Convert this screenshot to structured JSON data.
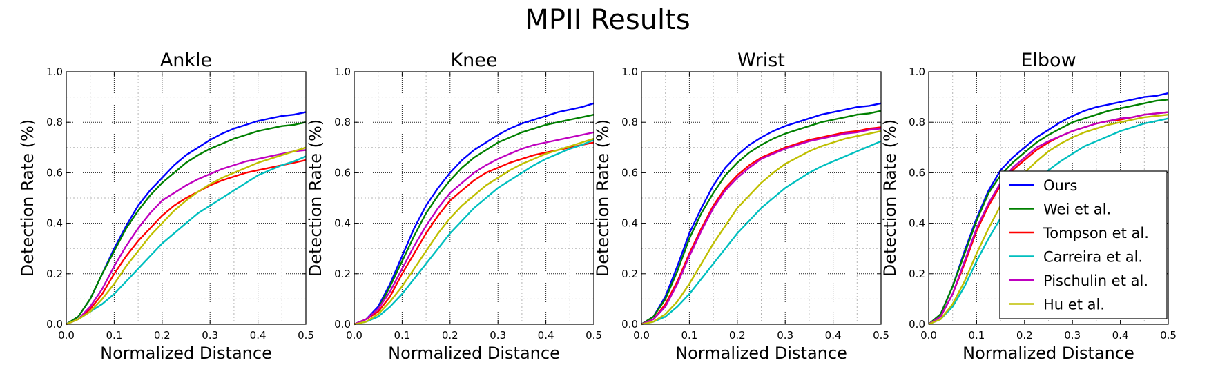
{
  "figure": {
    "title": "MPII Results"
  },
  "chart_data": [
    {
      "type": "line",
      "title": "Ankle",
      "xlabel": "Normalized Distance",
      "ylabel": "Detection Rate (%)",
      "xlim": [
        0,
        0.5
      ],
      "ylim": [
        0,
        1
      ],
      "xticks": [
        "0.0",
        "0.1",
        "0.2",
        "0.3",
        "0.4",
        "0.5"
      ],
      "yticks": [
        "0.0",
        "0.2",
        "0.4",
        "0.6",
        "0.8",
        "1.0"
      ],
      "grid": true,
      "x": [
        0,
        0.025,
        0.05,
        0.075,
        0.1,
        0.125,
        0.15,
        0.175,
        0.2,
        0.225,
        0.25,
        0.275,
        0.3,
        0.325,
        0.35,
        0.375,
        0.4,
        0.425,
        0.45,
        0.475,
        0.5
      ],
      "series": [
        {
          "name": "Ours",
          "color": "#0000ff",
          "values": [
            0.0,
            0.03,
            0.1,
            0.2,
            0.3,
            0.39,
            0.47,
            0.53,
            0.58,
            0.63,
            0.67,
            0.7,
            0.73,
            0.755,
            0.775,
            0.79,
            0.805,
            0.815,
            0.825,
            0.83,
            0.84
          ]
        },
        {
          "name": "Wei et al.",
          "color": "#008000",
          "values": [
            0.0,
            0.03,
            0.1,
            0.2,
            0.29,
            0.38,
            0.45,
            0.51,
            0.56,
            0.6,
            0.64,
            0.67,
            0.695,
            0.715,
            0.735,
            0.75,
            0.765,
            0.775,
            0.785,
            0.79,
            0.8
          ]
        },
        {
          "name": "Tompson et al.",
          "color": "#ff0000",
          "values": [
            0.0,
            0.02,
            0.06,
            0.12,
            0.2,
            0.27,
            0.33,
            0.38,
            0.43,
            0.47,
            0.5,
            0.525,
            0.55,
            0.57,
            0.585,
            0.6,
            0.61,
            0.62,
            0.63,
            0.64,
            0.65
          ]
        },
        {
          "name": "Carreira et al.",
          "color": "#00bfbf",
          "values": [
            0.0,
            0.02,
            0.05,
            0.08,
            0.12,
            0.17,
            0.22,
            0.27,
            0.32,
            0.36,
            0.4,
            0.44,
            0.47,
            0.5,
            0.53,
            0.56,
            0.59,
            0.61,
            0.63,
            0.645,
            0.665
          ]
        },
        {
          "name": "Pischulin et al.",
          "color": "#bf00bf",
          "values": [
            0.0,
            0.02,
            0.07,
            0.14,
            0.23,
            0.31,
            0.38,
            0.44,
            0.49,
            0.52,
            0.55,
            0.575,
            0.595,
            0.615,
            0.63,
            0.645,
            0.655,
            0.665,
            0.675,
            0.685,
            0.69
          ]
        },
        {
          "name": "Hu et al.",
          "color": "#bfbf00",
          "values": [
            0.0,
            0.02,
            0.05,
            0.1,
            0.16,
            0.23,
            0.29,
            0.35,
            0.4,
            0.45,
            0.49,
            0.525,
            0.555,
            0.58,
            0.6,
            0.62,
            0.64,
            0.655,
            0.67,
            0.685,
            0.7
          ]
        }
      ]
    },
    {
      "type": "line",
      "title": "Knee",
      "xlabel": "Normalized Distance",
      "ylabel": "Detection Rate (%)",
      "xlim": [
        0,
        0.5
      ],
      "ylim": [
        0,
        1
      ],
      "xticks": [
        "0.0",
        "0.1",
        "0.2",
        "0.3",
        "0.4",
        "0.5"
      ],
      "yticks": [
        "0.0",
        "0.2",
        "0.4",
        "0.6",
        "0.8",
        "1.0"
      ],
      "grid": true,
      "x": [
        0,
        0.025,
        0.05,
        0.075,
        0.1,
        0.125,
        0.15,
        0.175,
        0.2,
        0.225,
        0.25,
        0.275,
        0.3,
        0.325,
        0.35,
        0.375,
        0.4,
        0.425,
        0.45,
        0.475,
        0.5
      ],
      "series": [
        {
          "name": "Ours",
          "color": "#0000ff",
          "values": [
            0.0,
            0.02,
            0.07,
            0.16,
            0.27,
            0.38,
            0.47,
            0.54,
            0.6,
            0.65,
            0.69,
            0.72,
            0.75,
            0.775,
            0.795,
            0.81,
            0.825,
            0.84,
            0.85,
            0.86,
            0.875
          ]
        },
        {
          "name": "Wei et al.",
          "color": "#008000",
          "values": [
            0.0,
            0.02,
            0.06,
            0.15,
            0.25,
            0.35,
            0.44,
            0.51,
            0.57,
            0.62,
            0.66,
            0.69,
            0.72,
            0.74,
            0.76,
            0.775,
            0.79,
            0.8,
            0.81,
            0.82,
            0.83
          ]
        },
        {
          "name": "Tompson et al.",
          "color": "#ff0000",
          "values": [
            0.0,
            0.02,
            0.05,
            0.11,
            0.2,
            0.28,
            0.36,
            0.43,
            0.49,
            0.53,
            0.57,
            0.6,
            0.62,
            0.64,
            0.655,
            0.67,
            0.68,
            0.69,
            0.7,
            0.71,
            0.72
          ]
        },
        {
          "name": "Carreira et al.",
          "color": "#00bfbf",
          "values": [
            0.0,
            0.01,
            0.03,
            0.07,
            0.12,
            0.18,
            0.24,
            0.3,
            0.36,
            0.41,
            0.46,
            0.5,
            0.54,
            0.57,
            0.6,
            0.63,
            0.655,
            0.675,
            0.695,
            0.71,
            0.73
          ]
        },
        {
          "name": "Pischulin et al.",
          "color": "#bf00bf",
          "values": [
            0.0,
            0.02,
            0.06,
            0.13,
            0.22,
            0.31,
            0.39,
            0.46,
            0.52,
            0.56,
            0.6,
            0.63,
            0.655,
            0.675,
            0.695,
            0.71,
            0.72,
            0.73,
            0.74,
            0.75,
            0.76
          ]
        },
        {
          "name": "Hu et al.",
          "color": "#bfbf00",
          "values": [
            0.0,
            0.01,
            0.04,
            0.09,
            0.15,
            0.22,
            0.29,
            0.36,
            0.42,
            0.47,
            0.51,
            0.55,
            0.58,
            0.61,
            0.635,
            0.655,
            0.675,
            0.69,
            0.705,
            0.72,
            0.735
          ]
        }
      ]
    },
    {
      "type": "line",
      "title": "Wrist",
      "xlabel": "Normalized Distance",
      "ylabel": "Detection Rate (%)",
      "xlim": [
        0,
        0.5
      ],
      "ylim": [
        0,
        1
      ],
      "xticks": [
        "0.0",
        "0.1",
        "0.2",
        "0.3",
        "0.4",
        "0.5"
      ],
      "yticks": [
        "0.0",
        "0.2",
        "0.4",
        "0.6",
        "0.8",
        "1.0"
      ],
      "grid": true,
      "x": [
        0,
        0.025,
        0.05,
        0.075,
        0.1,
        0.125,
        0.15,
        0.175,
        0.2,
        0.225,
        0.25,
        0.275,
        0.3,
        0.325,
        0.35,
        0.375,
        0.4,
        0.425,
        0.45,
        0.475,
        0.5
      ],
      "series": [
        {
          "name": "Ours",
          "color": "#0000ff",
          "values": [
            0.0,
            0.03,
            0.11,
            0.23,
            0.36,
            0.46,
            0.55,
            0.62,
            0.67,
            0.71,
            0.74,
            0.765,
            0.785,
            0.8,
            0.815,
            0.83,
            0.84,
            0.85,
            0.86,
            0.865,
            0.875
          ]
        },
        {
          "name": "Wei et al.",
          "color": "#008000",
          "values": [
            0.0,
            0.03,
            0.1,
            0.21,
            0.34,
            0.44,
            0.52,
            0.59,
            0.64,
            0.68,
            0.71,
            0.735,
            0.755,
            0.77,
            0.785,
            0.8,
            0.81,
            0.82,
            0.83,
            0.835,
            0.845
          ]
        },
        {
          "name": "Tompson et al.",
          "color": "#ff0000",
          "values": [
            0.0,
            0.02,
            0.08,
            0.17,
            0.28,
            0.38,
            0.47,
            0.54,
            0.59,
            0.63,
            0.66,
            0.68,
            0.7,
            0.715,
            0.73,
            0.74,
            0.75,
            0.76,
            0.765,
            0.775,
            0.78
          ]
        },
        {
          "name": "Carreira et al.",
          "color": "#00bfbf",
          "values": [
            0.0,
            0.01,
            0.03,
            0.07,
            0.12,
            0.18,
            0.24,
            0.3,
            0.36,
            0.41,
            0.46,
            0.5,
            0.54,
            0.57,
            0.6,
            0.625,
            0.645,
            0.665,
            0.685,
            0.705,
            0.725
          ]
        },
        {
          "name": "Pischulin et al.",
          "color": "#bf00bf",
          "values": [
            0.0,
            0.02,
            0.07,
            0.16,
            0.27,
            0.37,
            0.46,
            0.53,
            0.58,
            0.62,
            0.655,
            0.675,
            0.695,
            0.71,
            0.725,
            0.735,
            0.745,
            0.755,
            0.76,
            0.77,
            0.775
          ]
        },
        {
          "name": "Hu et al.",
          "color": "#bfbf00",
          "values": [
            0.0,
            0.01,
            0.04,
            0.09,
            0.16,
            0.24,
            0.32,
            0.39,
            0.46,
            0.51,
            0.56,
            0.6,
            0.635,
            0.66,
            0.685,
            0.705,
            0.72,
            0.735,
            0.745,
            0.755,
            0.765
          ]
        }
      ]
    },
    {
      "type": "line",
      "title": "Elbow",
      "xlabel": "Normalized Distance",
      "ylabel": "Detection Rate (%)",
      "xlim": [
        0,
        0.5
      ],
      "ylim": [
        0,
        1
      ],
      "xticks": [
        "0.0",
        "0.1",
        "0.2",
        "0.3",
        "0.4",
        "0.5"
      ],
      "yticks": [
        "0.0",
        "0.2",
        "0.4",
        "0.6",
        "0.8",
        "1.0"
      ],
      "grid": true,
      "legend": "lower-right",
      "x": [
        0,
        0.025,
        0.05,
        0.075,
        0.1,
        0.125,
        0.15,
        0.175,
        0.2,
        0.225,
        0.25,
        0.275,
        0.3,
        0.325,
        0.35,
        0.375,
        0.4,
        0.425,
        0.45,
        0.475,
        0.5
      ],
      "series": [
        {
          "name": "Ours",
          "color": "#0000ff",
          "values": [
            0.0,
            0.04,
            0.15,
            0.29,
            0.42,
            0.53,
            0.61,
            0.66,
            0.7,
            0.74,
            0.77,
            0.8,
            0.825,
            0.845,
            0.86,
            0.87,
            0.88,
            0.89,
            0.9,
            0.905,
            0.915
          ]
        },
        {
          "name": "Wei et al.",
          "color": "#008000",
          "values": [
            0.0,
            0.04,
            0.15,
            0.28,
            0.41,
            0.52,
            0.59,
            0.64,
            0.68,
            0.72,
            0.75,
            0.775,
            0.8,
            0.815,
            0.83,
            0.845,
            0.855,
            0.865,
            0.875,
            0.885,
            0.89
          ]
        },
        {
          "name": "Tompson et al.",
          "color": "#ff0000",
          "values": [
            0.0,
            0.03,
            0.12,
            0.24,
            0.37,
            0.47,
            0.55,
            0.61,
            0.65,
            0.69,
            0.72,
            0.745,
            0.765,
            0.78,
            0.795,
            0.805,
            0.81,
            0.82,
            0.83,
            0.835,
            0.84
          ]
        },
        {
          "name": "Carreira et al.",
          "color": "#00bfbf",
          "values": [
            0.0,
            0.02,
            0.07,
            0.15,
            0.25,
            0.34,
            0.42,
            0.48,
            0.53,
            0.57,
            0.61,
            0.645,
            0.675,
            0.705,
            0.725,
            0.745,
            0.765,
            0.78,
            0.795,
            0.805,
            0.815
          ]
        },
        {
          "name": "Pischulin et al.",
          "color": "#bf00bf",
          "values": [
            0.0,
            0.03,
            0.12,
            0.25,
            0.38,
            0.48,
            0.56,
            0.62,
            0.66,
            0.7,
            0.725,
            0.745,
            0.765,
            0.78,
            0.795,
            0.805,
            0.815,
            0.82,
            0.83,
            0.835,
            0.84
          ]
        },
        {
          "name": "Hu et al.",
          "color": "#bfbf00",
          "values": [
            0.0,
            0.02,
            0.08,
            0.17,
            0.28,
            0.38,
            0.47,
            0.54,
            0.6,
            0.645,
            0.685,
            0.715,
            0.74,
            0.76,
            0.775,
            0.79,
            0.8,
            0.81,
            0.82,
            0.825,
            0.83
          ]
        }
      ]
    }
  ]
}
